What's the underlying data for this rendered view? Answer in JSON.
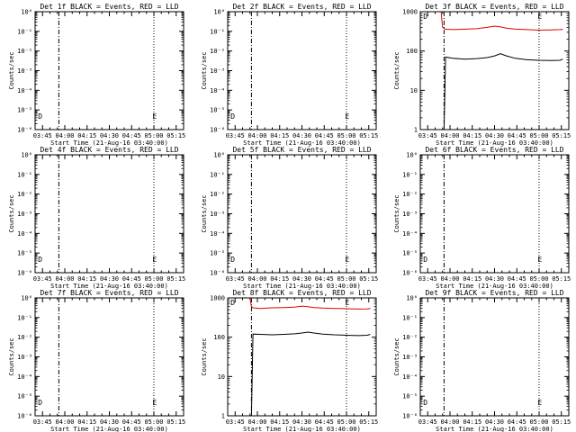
{
  "chart_data": [
    {
      "type": "line",
      "title": "Det 1f BLACK = Events, RED = LLD",
      "xlabel": "Start Time (21-Aug-16 03:40:00)",
      "ylabel": "Counts/sec",
      "x_ticks": [
        "03:45",
        "04:00",
        "04:15",
        "04:30",
        "04:45",
        "05:00",
        "05:15"
      ],
      "x_range_minutes": [
        0,
        100
      ],
      "y_scale": "log",
      "y_ticks": [
        "10⁰",
        "10⁻¹",
        "10⁻²",
        "10⁻³",
        "10⁻⁴",
        "10⁻⁵",
        "10⁻⁶"
      ],
      "y_tick_exponents": [
        0,
        -1,
        -2,
        -3,
        -4,
        -5,
        -6
      ],
      "markers": [
        {
          "text": "D",
          "x_minutes": 2
        },
        {
          "text": "E",
          "x_minutes": 79
        }
      ],
      "dashed_line_minutes": 16,
      "dotted_line_minutes": 80,
      "series": []
    },
    {
      "type": "line",
      "title": "Det 2f BLACK = Events, RED = LLD",
      "xlabel": "Start Time (21-Aug-16 03:40:00)",
      "ylabel": "Counts/sec",
      "x_ticks": [
        "03:45",
        "04:00",
        "04:15",
        "04:30",
        "04:45",
        "05:00",
        "05:15"
      ],
      "x_range_minutes": [
        0,
        100
      ],
      "y_scale": "log",
      "y_ticks": [
        "10⁰",
        "10⁻¹",
        "10⁻²",
        "10⁻³",
        "10⁻⁴",
        "10⁻⁵",
        "10⁻⁶"
      ],
      "y_tick_exponents": [
        0,
        -1,
        -2,
        -3,
        -4,
        -5,
        -6
      ],
      "markers": [
        {
          "text": "D",
          "x_minutes": 2
        },
        {
          "text": "E",
          "x_minutes": 79
        }
      ],
      "dashed_line_minutes": 16,
      "dotted_line_minutes": 80,
      "series": []
    },
    {
      "type": "line",
      "title": "Det 3f BLACK = Events, RED = LLD",
      "xlabel": "Start Time (21-Aug-16 03:40:00)",
      "ylabel": "Counts/sec",
      "x_ticks": [
        "03:45",
        "04:00",
        "04:15",
        "04:30",
        "04:45",
        "05:00",
        "05:15"
      ],
      "x_range_minutes": [
        0,
        100
      ],
      "y_scale": "log",
      "y_ticks": [
        "1000",
        "100",
        "10",
        "1"
      ],
      "y_tick_exponents": [
        3,
        2,
        1,
        0
      ],
      "markers": [
        {
          "text": "D",
          "x_minutes": 2
        },
        {
          "text": "E",
          "x_minutes": 79
        }
      ],
      "dashed_line_minutes": 16,
      "dotted_line_minutes": 80,
      "series": [
        {
          "color": "#dd0000",
          "x": [
            14,
            15,
            17,
            22,
            30,
            38,
            45,
            50,
            54,
            58,
            64,
            72,
            80,
            88,
            94,
            96
          ],
          "y": [
            1000,
            400,
            360,
            350,
            360,
            370,
            400,
            430,
            410,
            380,
            360,
            350,
            340,
            345,
            350,
            355
          ]
        },
        {
          "color": "#000000",
          "x": [
            16,
            17,
            22,
            30,
            38,
            45,
            50,
            54,
            58,
            64,
            72,
            80,
            88,
            94,
            96
          ],
          "y": [
            1,
            70,
            65,
            62,
            64,
            68,
            75,
            85,
            75,
            65,
            60,
            58,
            57,
            58,
            62
          ]
        }
      ]
    },
    {
      "type": "line",
      "title": "Det 4f BLACK = Events, RED = LLD",
      "xlabel": "Start Time (21-Aug-16 03:40:00)",
      "ylabel": "Counts/sec",
      "x_ticks": [
        "03:45",
        "04:00",
        "04:15",
        "04:30",
        "04:45",
        "05:00",
        "05:15"
      ],
      "x_range_minutes": [
        0,
        100
      ],
      "y_scale": "log",
      "y_ticks": [
        "10⁰",
        "10⁻¹",
        "10⁻²",
        "10⁻³",
        "10⁻⁴",
        "10⁻⁵",
        "10⁻⁶"
      ],
      "y_tick_exponents": [
        0,
        -1,
        -2,
        -3,
        -4,
        -5,
        -6
      ],
      "markers": [
        {
          "text": "D",
          "x_minutes": 2
        },
        {
          "text": "E",
          "x_minutes": 79
        }
      ],
      "dashed_line_minutes": 16,
      "dotted_line_minutes": 80,
      "series": []
    },
    {
      "type": "line",
      "title": "Det 5f BLACK = Events, RED = LLD",
      "xlabel": "Start Time (21-Aug-16 03:40:00)",
      "ylabel": "Counts/sec",
      "x_ticks": [
        "03:45",
        "04:00",
        "04:15",
        "04:30",
        "04:45",
        "05:00",
        "05:15"
      ],
      "x_range_minutes": [
        0,
        100
      ],
      "y_scale": "log",
      "y_ticks": [
        "10⁰",
        "10⁻¹",
        "10⁻²",
        "10⁻³",
        "10⁻⁴",
        "10⁻⁵",
        "10⁻⁶"
      ],
      "y_tick_exponents": [
        0,
        -1,
        -2,
        -3,
        -4,
        -5,
        -6
      ],
      "markers": [
        {
          "text": "D",
          "x_minutes": 2
        },
        {
          "text": "E",
          "x_minutes": 79
        }
      ],
      "dashed_line_minutes": 16,
      "dotted_line_minutes": 80,
      "series": []
    },
    {
      "type": "line",
      "title": "Det 6f BLACK = Events, RED = LLD",
      "xlabel": "Start Time (21-Aug-16 03:40:00)",
      "ylabel": "Counts/sec",
      "x_ticks": [
        "03:45",
        "04:00",
        "04:15",
        "04:30",
        "04:45",
        "05:00",
        "05:15"
      ],
      "x_range_minutes": [
        0,
        100
      ],
      "y_scale": "log",
      "y_ticks": [
        "10⁰",
        "10⁻¹",
        "10⁻²",
        "10⁻³",
        "10⁻⁴",
        "10⁻⁵",
        "10⁻⁶"
      ],
      "y_tick_exponents": [
        0,
        -1,
        -2,
        -3,
        -4,
        -5,
        -6
      ],
      "markers": [
        {
          "text": "D",
          "x_minutes": 2
        },
        {
          "text": "E",
          "x_minutes": 79
        }
      ],
      "dashed_line_minutes": 16,
      "dotted_line_minutes": 80,
      "series": []
    },
    {
      "type": "line",
      "title": "Det 7f BLACK = Events, RED = LLD",
      "xlabel": "Start Time (21-Aug-16 03:40:00)",
      "ylabel": "Counts/sec",
      "x_ticks": [
        "03:45",
        "04:00",
        "04:15",
        "04:30",
        "04:45",
        "05:00",
        "05:15"
      ],
      "x_range_minutes": [
        0,
        100
      ],
      "y_scale": "log",
      "y_ticks": [
        "10⁰",
        "10⁻¹",
        "10⁻²",
        "10⁻³",
        "10⁻⁴",
        "10⁻⁵",
        "10⁻⁶"
      ],
      "y_tick_exponents": [
        0,
        -1,
        -2,
        -3,
        -4,
        -5,
        -6
      ],
      "markers": [
        {
          "text": "D",
          "x_minutes": 2
        },
        {
          "text": "E",
          "x_minutes": 79
        }
      ],
      "dashed_line_minutes": 16,
      "dotted_line_minutes": 80,
      "series": []
    },
    {
      "type": "line",
      "title": "Det 8f BLACK = Events, RED = LLD",
      "xlabel": "Start Time (21-Aug-16 03:40:00)",
      "ylabel": "Counts/sec",
      "x_ticks": [
        "03:45",
        "04:00",
        "04:15",
        "04:30",
        "04:45",
        "05:00",
        "05:15"
      ],
      "x_range_minutes": [
        0,
        100
      ],
      "y_scale": "log",
      "y_ticks": [
        "1000",
        "100",
        "10",
        "1"
      ],
      "y_tick_exponents": [
        3,
        2,
        1,
        0
      ],
      "markers": [
        {
          "text": "D",
          "x_minutes": 2
        },
        {
          "text": "E",
          "x_minutes": 79
        }
      ],
      "dashed_line_minutes": 16,
      "dotted_line_minutes": 80,
      "series": [
        {
          "color": "#dd0000",
          "x": [
            15,
            16,
            17,
            22,
            30,
            38,
            45,
            50,
            54,
            58,
            64,
            72,
            80,
            88,
            94,
            96
          ],
          "y": [
            1000,
            600,
            560,
            540,
            560,
            570,
            580,
            620,
            600,
            570,
            550,
            540,
            530,
            520,
            525,
            540
          ]
        },
        {
          "color": "#000000",
          "x": [
            16,
            17,
            22,
            30,
            38,
            45,
            50,
            54,
            58,
            64,
            72,
            80,
            88,
            94,
            96
          ],
          "y": [
            1,
            120,
            118,
            115,
            118,
            122,
            128,
            135,
            128,
            120,
            115,
            112,
            110,
            112,
            118
          ]
        }
      ]
    },
    {
      "type": "line",
      "title": "Det 9f BLACK = Events, RED = LLD",
      "xlabel": "Start Time (21-Aug-16 03:40:00)",
      "ylabel": "Counts/sec",
      "x_ticks": [
        "03:45",
        "04:00",
        "04:15",
        "04:30",
        "04:45",
        "05:00",
        "05:15"
      ],
      "x_range_minutes": [
        0,
        100
      ],
      "y_scale": "log",
      "y_ticks": [
        "10⁰",
        "10⁻¹",
        "10⁻²",
        "10⁻³",
        "10⁻⁴",
        "10⁻⁵",
        "10⁻⁶"
      ],
      "y_tick_exponents": [
        0,
        -1,
        -2,
        -3,
        -4,
        -5,
        -6
      ],
      "markers": [
        {
          "text": "D",
          "x_minutes": 2
        },
        {
          "text": "E",
          "x_minutes": 79
        }
      ],
      "dashed_line_minutes": 16,
      "dotted_line_minutes": 80,
      "series": []
    }
  ]
}
